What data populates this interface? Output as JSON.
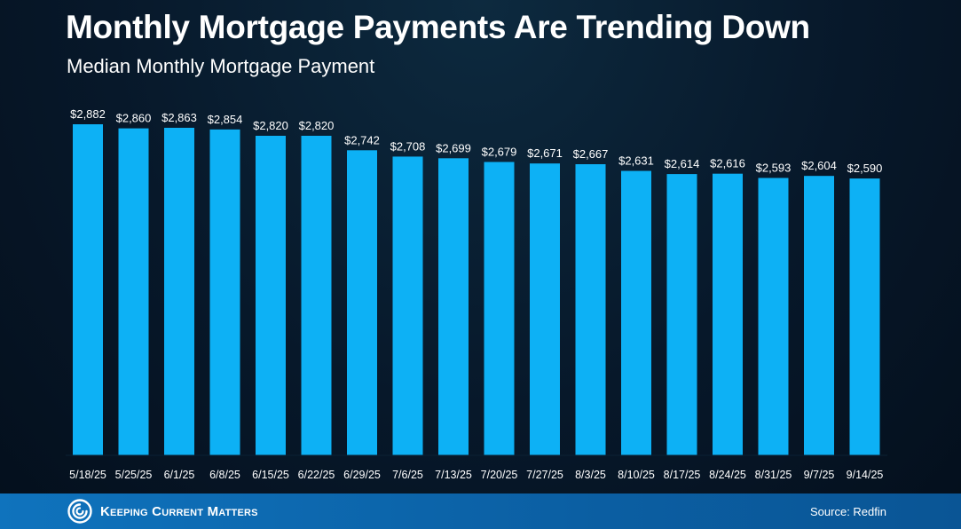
{
  "header": {
    "title": "Monthly Mortgage Payments Are Trending Down",
    "subtitle": "Median Monthly Mortgage Payment"
  },
  "chart_data": {
    "type": "bar",
    "title": "Monthly Mortgage Payments Are Trending Down",
    "subtitle": "Median Monthly Mortgage Payment",
    "categories": [
      "5/18/25",
      "5/25/25",
      "6/1/25",
      "6/8/25",
      "6/15/25",
      "6/22/25",
      "6/29/25",
      "7/6/25",
      "7/13/25",
      "7/20/25",
      "7/27/25",
      "8/3/25",
      "8/10/25",
      "8/17/25",
      "8/24/25",
      "8/31/25",
      "9/7/25",
      "9/14/25"
    ],
    "values": [
      2882,
      2860,
      2863,
      2854,
      2820,
      2820,
      2742,
      2708,
      2699,
      2679,
      2671,
      2667,
      2631,
      2614,
      2616,
      2593,
      2604,
      2590
    ],
    "value_labels": [
      "$2,882",
      "$2,860",
      "$2,863",
      "$2,854",
      "$2,820",
      "$2,820",
      "$2,742",
      "$2,708",
      "$2,699",
      "$2,679",
      "$2,671",
      "$2,667",
      "$2,631",
      "$2,614",
      "$2,616",
      "$2,593",
      "$2,604",
      "$2,590"
    ],
    "xlabel": "",
    "ylabel": "",
    "ylim": [
      1100,
      2882
    ],
    "grid": false,
    "legend": "none",
    "bar_color": "#0db1f5"
  },
  "footer": {
    "brand": "Keeping Current Matters",
    "source": "Source: Redfin",
    "logo_icon": "kcm-swirl-icon"
  }
}
